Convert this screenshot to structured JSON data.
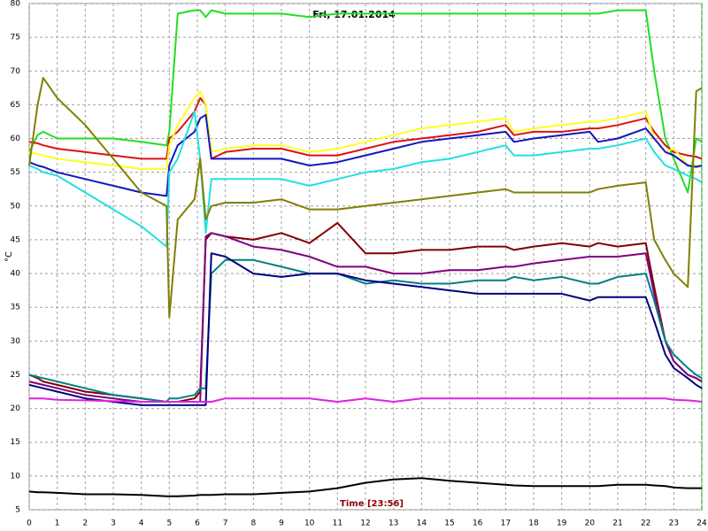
{
  "chart_data": {
    "type": "line",
    "title": "Fri, 17.01.2014",
    "x_label": "Time [23:56]",
    "y_label": "°C",
    "xlim": [
      0,
      24
    ],
    "ylim": [
      5,
      80
    ],
    "xticks": [
      0,
      1,
      2,
      3,
      4,
      5,
      6,
      7,
      8,
      9,
      10,
      11,
      12,
      13,
      14,
      15,
      16,
      17,
      18,
      19,
      20,
      21,
      22,
      23,
      24
    ],
    "yticks": [
      5,
      10,
      15,
      20,
      25,
      30,
      35,
      40,
      45,
      50,
      55,
      60,
      65,
      70,
      75,
      80
    ],
    "grid": true,
    "x": [
      0,
      0.3,
      0.5,
      1,
      2,
      3,
      4,
      4.9,
      5,
      5.3,
      5.9,
      6.1,
      6.3,
      6.5,
      7,
      8,
      9,
      10,
      11,
      12,
      13,
      14,
      15,
      16,
      17,
      17.3,
      18,
      19,
      20,
      20.3,
      21,
      22,
      22.3,
      22.7,
      23,
      23.5,
      23.8,
      24
    ],
    "series": [
      {
        "color": "#22dd22",
        "values": [
          58,
          60.5,
          61,
          60,
          60,
          60,
          59.5,
          59,
          61,
          78.5,
          79,
          79,
          78,
          79,
          78.5,
          78.5,
          78.5,
          78,
          78.5,
          78.5,
          78.5,
          78.5,
          78.5,
          78.5,
          78.5,
          78.5,
          78.5,
          78.5,
          78.5,
          78.5,
          79,
          79,
          70,
          60,
          57,
          52,
          60,
          59.5
        ]
      },
      {
        "color": "#dd1111",
        "values": [
          59.5,
          59.3,
          59,
          58.5,
          58,
          57.5,
          57,
          57,
          60,
          61,
          64,
          66,
          65,
          57,
          58,
          58.5,
          58.5,
          57.5,
          57.5,
          58.5,
          59.5,
          60,
          60.5,
          61,
          62,
          60.5,
          61,
          61,
          61.5,
          61.5,
          62,
          63,
          61,
          59,
          58,
          57.5,
          57.3,
          57
        ]
      },
      {
        "color": "#ffff22",
        "values": [
          58,
          57.7,
          57.5,
          57,
          56.5,
          56,
          55.5,
          55.5,
          59,
          62,
          66,
          67,
          65,
          58,
          58.5,
          59,
          59,
          58,
          58.5,
          59.5,
          60.5,
          61.5,
          62,
          62.5,
          63,
          61,
          61.5,
          62,
          62.5,
          62.5,
          63,
          64,
          60,
          58,
          58.5,
          56,
          56,
          56
        ]
      },
      {
        "color": "#1515c0",
        "values": [
          56.5,
          56,
          55.8,
          55,
          54,
          53,
          52,
          51.5,
          56,
          59,
          61,
          63,
          63.5,
          57,
          57,
          57,
          57,
          56,
          56.5,
          57.5,
          58.5,
          59.5,
          60,
          60.5,
          61,
          59.5,
          60,
          60.5,
          61,
          59.5,
          60,
          61.5,
          60,
          58,
          57.5,
          56,
          55.8,
          56
        ]
      },
      {
        "color": "#22e0e0",
        "values": [
          56,
          55.5,
          55,
          54.5,
          52,
          49.5,
          47,
          44,
          55,
          57,
          64,
          57,
          46,
          54,
          54,
          54,
          54,
          53,
          54,
          55,
          55.5,
          56.5,
          57,
          58,
          59,
          57.5,
          57.5,
          58,
          58.5,
          58.5,
          59,
          60,
          58,
          56,
          55.5,
          54.5,
          54,
          53.5
        ]
      },
      {
        "color": "#808000",
        "values": [
          56,
          65,
          69,
          66,
          62,
          57,
          52,
          50,
          33.5,
          48,
          51,
          57,
          48,
          50,
          50.5,
          50.5,
          51,
          49.5,
          49.5,
          50,
          50.5,
          51,
          51.5,
          52,
          52.5,
          52,
          52,
          52,
          52,
          52.5,
          53,
          53.5,
          45,
          42,
          40,
          38,
          67,
          67.5
        ]
      },
      {
        "color": "#800000",
        "values": [
          25,
          24.5,
          24,
          23.5,
          22.5,
          22,
          21.5,
          21,
          21,
          21,
          21.5,
          22.5,
          45,
          46,
          45.5,
          45,
          46,
          44.5,
          47.5,
          43,
          43,
          43.5,
          43.5,
          44,
          44,
          43.5,
          44,
          44.5,
          44,
          44.5,
          44,
          44.5,
          38,
          30,
          27,
          25,
          24.5,
          24
        ]
      },
      {
        "color": "#800080",
        "values": [
          24,
          23.7,
          23.5,
          23,
          22,
          21.5,
          21,
          21,
          21,
          21,
          21,
          21,
          45.5,
          46,
          45.5,
          44,
          43.5,
          42.5,
          41,
          41,
          40,
          40,
          40.5,
          40.5,
          41,
          41,
          41.5,
          42,
          42.5,
          42.5,
          42.5,
          43,
          37,
          30,
          27,
          25,
          24.5,
          24
        ]
      },
      {
        "color": "#008080",
        "values": [
          25,
          24.7,
          24.5,
          24,
          23,
          22,
          21.5,
          21,
          21.5,
          21.5,
          22,
          23,
          23,
          40,
          42,
          42,
          41,
          40,
          40,
          38.5,
          39,
          38.5,
          38.5,
          39,
          39,
          39.5,
          39,
          39.5,
          38.5,
          38.5,
          39.5,
          40,
          36,
          30,
          28,
          26,
          25,
          24.5
        ]
      },
      {
        "color": "#000080",
        "values": [
          23.5,
          23.2,
          23,
          22.5,
          21.5,
          21,
          20.5,
          20.5,
          20.5,
          20.5,
          20.5,
          20.5,
          20.5,
          43,
          42.5,
          40,
          39.5,
          40,
          40,
          39,
          38.5,
          38,
          37.5,
          37,
          37,
          37,
          37,
          37,
          36,
          36.5,
          36.5,
          36.5,
          33,
          28,
          26,
          24.5,
          23.5,
          23
        ]
      },
      {
        "color": "#e020e0",
        "values": [
          21.5,
          21.5,
          21.5,
          21.3,
          21.2,
          21.1,
          21,
          21,
          21,
          21,
          21,
          21,
          21,
          21,
          21.5,
          21.5,
          21.5,
          21.5,
          21,
          21.5,
          21,
          21.5,
          21.5,
          21.5,
          21.5,
          21.5,
          21.5,
          21.5,
          21.5,
          21.5,
          21.5,
          21.5,
          21.5,
          21.5,
          21.3,
          21.2,
          21.1,
          21
        ]
      },
      {
        "color": "#000000",
        "values": [
          7.7,
          7.6,
          7.6,
          7.5,
          7.3,
          7.3,
          7.2,
          7,
          7,
          7,
          7.1,
          7.2,
          7.2,
          7.2,
          7.3,
          7.3,
          7.5,
          7.7,
          8.2,
          9,
          9.5,
          9.7,
          9.3,
          9,
          8.7,
          8.6,
          8.5,
          8.5,
          8.5,
          8.5,
          8.7,
          8.7,
          8.6,
          8.5,
          8.3,
          8.2,
          8.2,
          8.2
        ]
      }
    ]
  }
}
